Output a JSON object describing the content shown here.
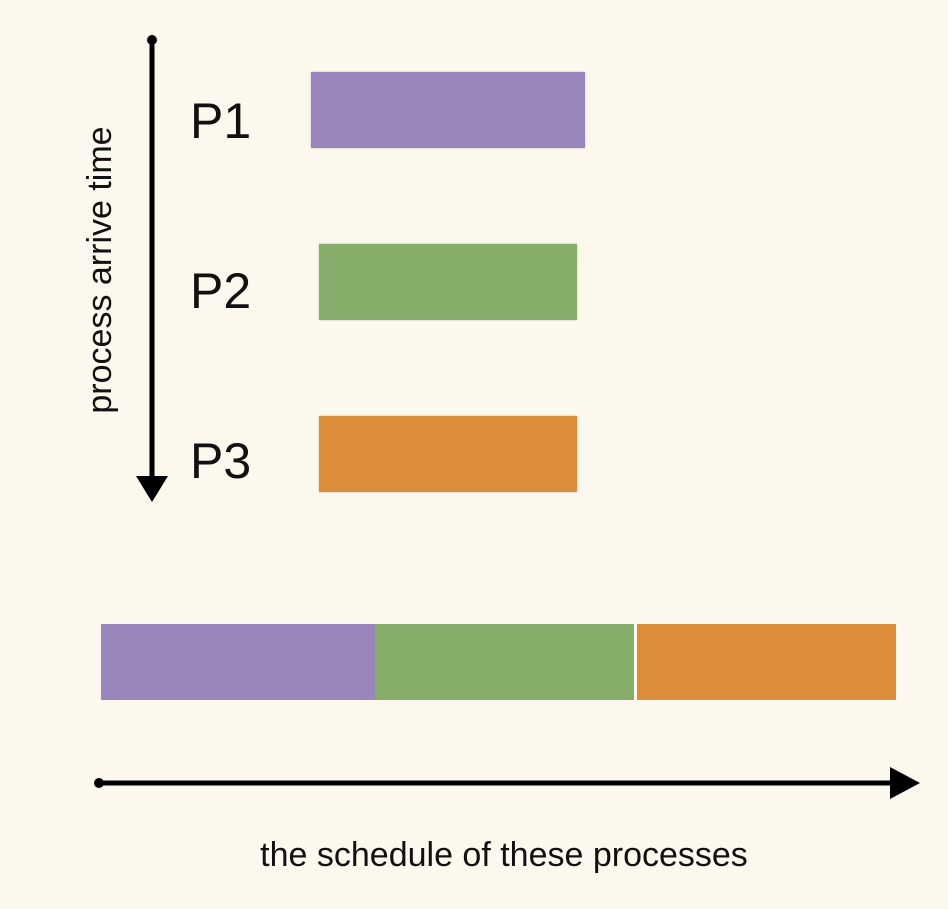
{
  "diagram": {
    "vertical_axis_label": "process arrive time",
    "horizontal_axis_label": "the schedule of these processes",
    "processes": [
      {
        "name": "P1",
        "color": "#9b85bd"
      },
      {
        "name": "P2",
        "color": "#86ae6a"
      },
      {
        "name": "P3",
        "color": "#db8d3a"
      }
    ],
    "schedule": [
      {
        "process": "P1",
        "color": "#9b85bd"
      },
      {
        "process": "P2",
        "color": "#86ae6a"
      },
      {
        "process": "P3",
        "color": "#db8d3a"
      }
    ]
  }
}
